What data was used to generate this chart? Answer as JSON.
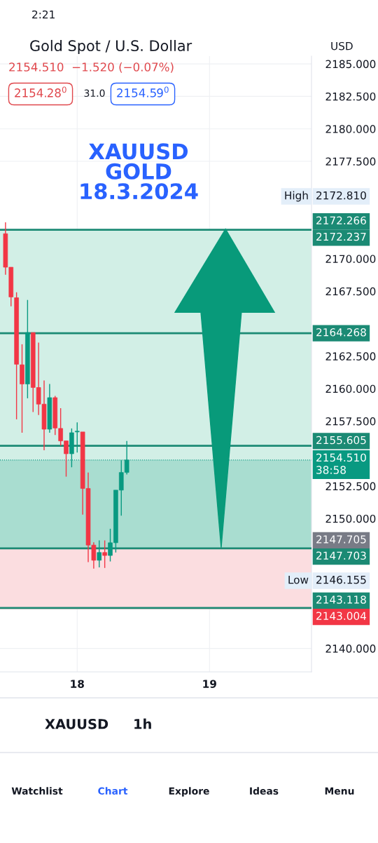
{
  "chart_data": {
    "type": "candlestick",
    "title": "Gold Spot / U.S. Dollar",
    "x": [
      "2024-03-17T11:00",
      "2024-03-17T12:00",
      "2024-03-17T13:00",
      "2024-03-17T14:00",
      "2024-03-17T15:00",
      "2024-03-17T16:00",
      "2024-03-17T17:00",
      "2024-03-17T18:00",
      "2024-03-17T19:00",
      "2024-03-17T20:00",
      "2024-03-17T21:00",
      "2024-03-17T22:00",
      "2024-03-17T23:00",
      "2024-03-18T00:00",
      "2024-03-18T01:00",
      "2024-03-18T02:00",
      "2024-03-18T03:00",
      "2024-03-18T04:00",
      "2024-03-18T05:00",
      "2024-03-18T06:00",
      "2024-03-18T07:00",
      "2024-03-18T08:00",
      "2024-03-18T09:00"
    ],
    "ohlc": [
      [
        2171.93,
        2172.81,
        2168.77,
        2169.35
      ],
      [
        2169.35,
        2169.35,
        2166.34,
        2167.06
      ],
      [
        2167.0,
        2167.42,
        2157.64,
        2161.88
      ],
      [
        2161.84,
        2163.42,
        2156.61,
        2160.36
      ],
      [
        2160.36,
        2166.83,
        2159.26,
        2164.32
      ],
      [
        2164.32,
        2164.32,
        2158.2,
        2160.09
      ],
      [
        2160.09,
        2163.55,
        2157.97,
        2158.81
      ],
      [
        2158.81,
        2160.63,
        2155.26,
        2156.88
      ],
      [
        2156.88,
        2160.36,
        2156.61,
        2159.31
      ],
      [
        2159.31,
        2159.44,
        2156.43,
        2156.97
      ],
      [
        2156.94,
        2158.5,
        2155.62,
        2155.98
      ],
      [
        2155.98,
        2155.98,
        2153.23,
        2154.99
      ],
      [
        2154.99,
        2156.94,
        2153.95,
        2156.61
      ],
      [
        2156.67,
        2157.41,
        2155.08,
        2156.72
      ],
      [
        2156.67,
        2156.67,
        2150.31,
        2152.32
      ],
      [
        2152.32,
        2153.55,
        2146.65,
        2147.96
      ],
      [
        2147.96,
        2148.18,
        2146.155,
        2146.79
      ],
      [
        2146.79,
        2148.32,
        2146.25,
        2147.39
      ],
      [
        2147.39,
        2148.32,
        2146.2,
        2147.16
      ],
      [
        2147.16,
        2149.22,
        2146.7,
        2148.14
      ],
      [
        2148.14,
        2152.19,
        2147.39,
        2152.19
      ],
      [
        2152.19,
        2154.49,
        2150.23,
        2153.55
      ],
      [
        2153.55,
        2155.98,
        2153.4,
        2154.51
      ]
    ],
    "xlim": [
      "2024-03-17T10:00",
      "2024-03-19T18:30"
    ],
    "xticks": [
      {
        "value": "2024-03-18",
        "label": "18"
      },
      {
        "value": "2024-03-19",
        "label": "19"
      }
    ],
    "ylim": [
      2138.2,
      2185.6
    ],
    "yticks": [
      {
        "value": 2140,
        "label": "2140.000"
      },
      {
        "value": 2150,
        "label": "2150.000"
      },
      {
        "value": 2152.5,
        "label": "2152.500"
      },
      {
        "value": 2157.5,
        "label": "2157.500"
      },
      {
        "value": 2160,
        "label": "2160.000"
      },
      {
        "value": 2162.5,
        "label": "2162.500"
      },
      {
        "value": 2167.5,
        "label": "2167.500"
      },
      {
        "value": 2170,
        "label": "2170.000"
      },
      {
        "value": 2177.5,
        "label": "2177.500"
      },
      {
        "value": 2180,
        "label": "2180.000"
      },
      {
        "value": 2182.5,
        "label": "2182.500"
      },
      {
        "value": 2185,
        "label": "2185.000"
      }
    ],
    "grid": true,
    "bands": [
      {
        "axis": "y",
        "from": 2172.266,
        "to": 2147.705,
        "color": "#d2efe6",
        "label": "2172.266"
      },
      {
        "axis": "y",
        "from": 2147.705,
        "to": 2154.51,
        "color": "#a9ddd0",
        "label": "2147.705"
      },
      {
        "axis": "y",
        "from": 2143.004,
        "to": 2147.705,
        "color": "#fbdde0",
        "label": "2143.004"
      }
    ],
    "ref_lines": [
      {
        "axis": "y",
        "value": 2172.237,
        "label": "2172.237",
        "color": "#1b8a74",
        "line_style": "solid"
      },
      {
        "axis": "y",
        "value": 2164.268,
        "label": "2164.268",
        "color": "#1b8a74",
        "line_style": "solid"
      },
      {
        "axis": "y",
        "value": 2155.605,
        "label": "2155.605",
        "color": "#1b8a74",
        "line_style": "solid"
      },
      {
        "axis": "y",
        "value": 2154.51,
        "label": "2154.510\n38:58",
        "color": "#089981",
        "line_style": "dotted"
      },
      {
        "axis": "y",
        "value": 2147.703,
        "label": "2147.703",
        "color": "#1b8a74",
        "line_style": "solid"
      },
      {
        "axis": "y",
        "value": 2143.118,
        "label": "2143.118",
        "color": "#1b8a74",
        "line_style": "solid"
      }
    ],
    "annotations": [
      "XAUUSD\nGOLD\n18.3.2024",
      "2154.510  −1.520 (−0.07%)",
      "2154.28$^{0}$",
      "31.0",
      "2154.59$^{0}$",
      "USD",
      "2:21",
      "XAUUSD",
      "1h",
      "Watchlist",
      "Chart",
      "Explore",
      "Ideas",
      "Menu",
      "High",
      "2172.810",
      "Low",
      "2146.155"
    ]
  }
}
